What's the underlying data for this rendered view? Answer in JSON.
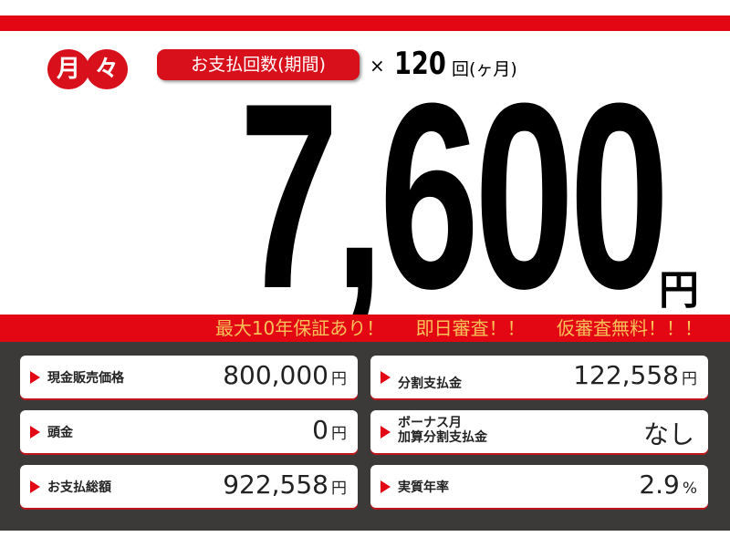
{
  "header": {
    "badge_chars": [
      "月",
      "々"
    ],
    "pill": "お支払回数(期間)",
    "times": "×",
    "count": "120",
    "count_unit": "回(ヶ月)"
  },
  "price": {
    "monthly": "7,600",
    "yen": "円"
  },
  "promo": [
    "最大10年保証あり！",
    "即日審査！！",
    "仮審査無料！！！"
  ],
  "details": [
    {
      "label": "現金販売価格",
      "value": "800,000",
      "unit": "円"
    },
    {
      "label": "分割支払金",
      "value": "122,558",
      "unit": "円"
    },
    {
      "label": "頭金",
      "value": "0",
      "unit": "円"
    },
    {
      "label": "ボーナス月\n加算分割支払金",
      "value": "なし",
      "unit": ""
    },
    {
      "label": "お支払総額",
      "value": "922,558",
      "unit": "円"
    },
    {
      "label": "実質年率",
      "value": "2.9",
      "unit": "%"
    }
  ],
  "colors": {
    "red": "#e30613",
    "promo_text": "#f7c15a",
    "panel": "#3b3a39"
  }
}
